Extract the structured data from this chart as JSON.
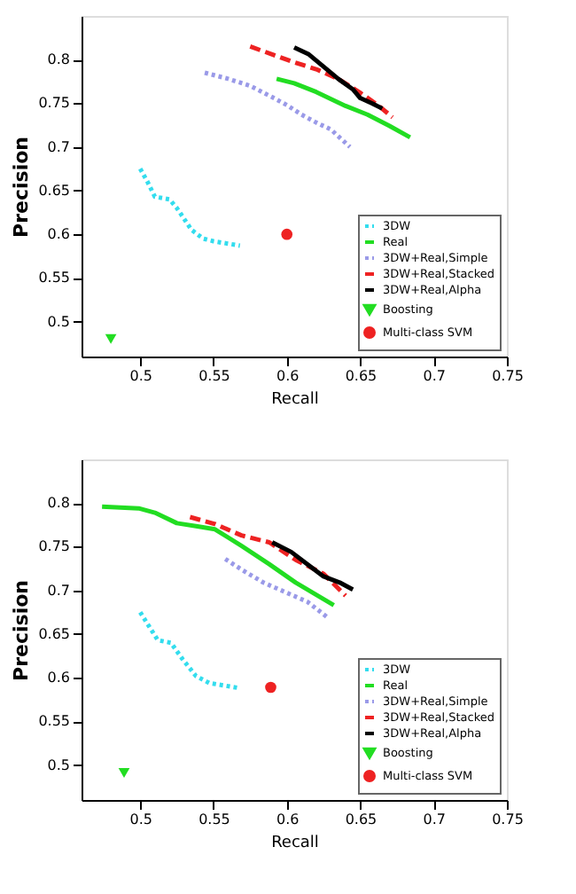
{
  "chart_data": [
    {
      "type": "line",
      "xlabel": "Recall",
      "ylabel": "Precision",
      "xlim": [
        0.46,
        0.75
      ],
      "ylim": [
        0.46,
        0.85
      ],
      "xticks": [
        0.5,
        0.55,
        0.6,
        0.65,
        0.7,
        0.75
      ],
      "yticks": [
        0.5,
        0.55,
        0.6,
        0.65,
        0.7,
        0.75,
        0.8
      ],
      "grid": false,
      "legend": "bottom right",
      "series": [
        {
          "name": "3DW",
          "color": "#33ddee",
          "line_style": "dotted",
          "x": [
            0.5,
            0.505,
            0.51,
            0.52,
            0.525,
            0.535,
            0.543,
            0.55,
            0.568
          ],
          "values": [
            0.675,
            0.66,
            0.643,
            0.64,
            0.63,
            0.605,
            0.595,
            0.592,
            0.587
          ]
        },
        {
          "name": "Real",
          "color": "#22dd22",
          "line_style": "solid",
          "x": [
            0.593,
            0.605,
            0.62,
            0.64,
            0.655,
            0.67,
            0.684
          ],
          "values": [
            0.778,
            0.773,
            0.763,
            0.747,
            0.737,
            0.724,
            0.711
          ]
        },
        {
          "name": "3DW+Real,Simple",
          "color": "#9a9ae8",
          "line_style": "dotted",
          "x": [
            0.544,
            0.56,
            0.575,
            0.59,
            0.6,
            0.61,
            0.62,
            0.63,
            0.643
          ],
          "values": [
            0.785,
            0.778,
            0.77,
            0.757,
            0.748,
            0.737,
            0.728,
            0.72,
            0.7
          ]
        },
        {
          "name": "3DW+Real,Stacked",
          "color": "#ee2222",
          "line_style": "dashed",
          "x": [
            0.575,
            0.59,
            0.605,
            0.62,
            0.635,
            0.65,
            0.662,
            0.672
          ],
          "values": [
            0.815,
            0.806,
            0.797,
            0.789,
            0.778,
            0.762,
            0.748,
            0.734
          ]
        },
        {
          "name": "3DW+Real,Alpha",
          "color": "#000000",
          "line_style": "solid",
          "x": [
            0.605,
            0.615,
            0.625,
            0.635,
            0.645,
            0.65,
            0.658,
            0.665
          ],
          "values": [
            0.814,
            0.806,
            0.792,
            0.778,
            0.766,
            0.756,
            0.75,
            0.744
          ]
        },
        {
          "name": "Boosting",
          "type": "scatter",
          "marker": "triangle",
          "color": "#22dd22",
          "x": [
            0.48
          ],
          "values": [
            0.48
          ]
        },
        {
          "name": "Multi-class SVM",
          "type": "scatter",
          "marker": "circle",
          "color": "#ee2222",
          "x": [
            0.6
          ],
          "values": [
            0.6
          ]
        }
      ]
    },
    {
      "type": "line",
      "xlabel": "Recall",
      "ylabel": "Precision",
      "xlim": [
        0.46,
        0.75
      ],
      "ylim": [
        0.46,
        0.85
      ],
      "xticks": [
        0.5,
        0.55,
        0.6,
        0.65,
        0.7,
        0.75
      ],
      "yticks": [
        0.5,
        0.55,
        0.6,
        0.65,
        0.7,
        0.75,
        0.8
      ],
      "grid": false,
      "legend": "bottom right",
      "series": [
        {
          "name": "3DW",
          "color": "#33ddee",
          "line_style": "dotted",
          "x": [
            0.5,
            0.506,
            0.512,
            0.521,
            0.529,
            0.538,
            0.547,
            0.568
          ],
          "values": [
            0.675,
            0.659,
            0.643,
            0.64,
            0.621,
            0.602,
            0.594,
            0.588
          ]
        },
        {
          "name": "Real",
          "color": "#22dd22",
          "line_style": "solid",
          "x": [
            0.474,
            0.499,
            0.51,
            0.525,
            0.54,
            0.551,
            0.569,
            0.588,
            0.606,
            0.632
          ],
          "values": [
            0.796,
            0.794,
            0.789,
            0.777,
            0.773,
            0.77,
            0.751,
            0.73,
            0.709,
            0.683
          ]
        },
        {
          "name": "3DW+Real,Simple",
          "color": "#9a9ae8",
          "line_style": "dotted",
          "x": [
            0.558,
            0.569,
            0.584,
            0.599,
            0.614,
            0.627
          ],
          "values": [
            0.736,
            0.724,
            0.709,
            0.698,
            0.687,
            0.67
          ]
        },
        {
          "name": "3DW+Real,Stacked",
          "color": "#ee2222",
          "line_style": "dashed",
          "x": [
            0.534,
            0.551,
            0.569,
            0.588,
            0.606,
            0.625,
            0.64
          ],
          "values": [
            0.784,
            0.776,
            0.763,
            0.755,
            0.735,
            0.719,
            0.694
          ]
        },
        {
          "name": "3DW+Real,Alpha",
          "color": "#000000",
          "line_style": "solid",
          "x": [
            0.59,
            0.603,
            0.614,
            0.625,
            0.636,
            0.645
          ],
          "values": [
            0.755,
            0.744,
            0.73,
            0.716,
            0.709,
            0.701
          ]
        },
        {
          "name": "Boosting",
          "type": "scatter",
          "marker": "triangle",
          "color": "#22dd22",
          "x": [
            0.489
          ],
          "values": [
            0.491
          ]
        },
        {
          "name": "Multi-class SVM",
          "type": "scatter",
          "marker": "circle",
          "color": "#ee2222",
          "x": [
            0.589
          ],
          "values": [
            0.589
          ]
        }
      ]
    }
  ]
}
